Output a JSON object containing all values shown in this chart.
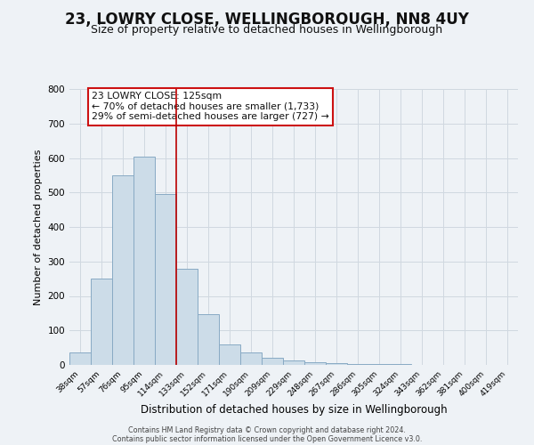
{
  "title": "23, LOWRY CLOSE, WELLINGBOROUGH, NN8 4UY",
  "subtitle": "Size of property relative to detached houses in Wellingborough",
  "xlabel": "Distribution of detached houses by size in Wellingborough",
  "ylabel": "Number of detached properties",
  "footer_lines": [
    "Contains HM Land Registry data © Crown copyright and database right 2024.",
    "Contains public sector information licensed under the Open Government Licence v3.0."
  ],
  "bin_labels": [
    "38sqm",
    "57sqm",
    "76sqm",
    "95sqm",
    "114sqm",
    "133sqm",
    "152sqm",
    "171sqm",
    "190sqm",
    "209sqm",
    "229sqm",
    "248sqm",
    "267sqm",
    "286sqm",
    "305sqm",
    "324sqm",
    "343sqm",
    "362sqm",
    "381sqm",
    "400sqm",
    "419sqm"
  ],
  "bar_heights": [
    35,
    250,
    550,
    605,
    495,
    278,
    148,
    60,
    35,
    20,
    14,
    8,
    4,
    3,
    2,
    2,
    1,
    1,
    1,
    1,
    1
  ],
  "bar_color": "#ccdce8",
  "bar_edge_color": "#88aac4",
  "bar_edge_width": 0.7,
  "vline_x_idx": 4.5,
  "vline_color": "#bb0000",
  "ylim": [
    0,
    800
  ],
  "yticks": [
    0,
    100,
    200,
    300,
    400,
    500,
    600,
    700,
    800
  ],
  "grid_color": "#d0d8e0",
  "background_color": "#eef2f6",
  "annotation_line1": "23 LOWRY CLOSE: 125sqm",
  "annotation_line2": "← 70% of detached houses are smaller (1,733)",
  "annotation_line3": "29% of semi-detached houses are larger (727) →",
  "title_fontsize": 12,
  "subtitle_fontsize": 9
}
